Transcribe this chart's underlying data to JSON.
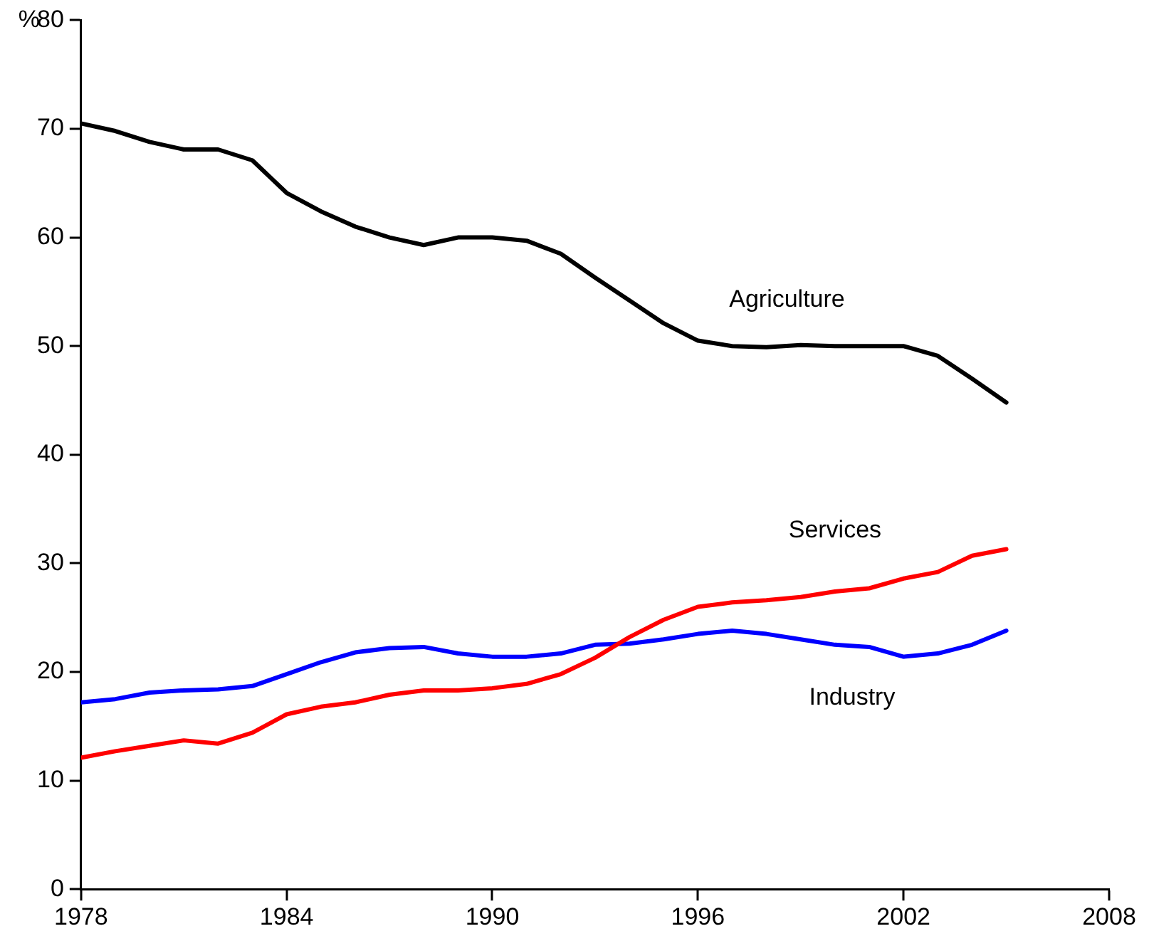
{
  "chart_data": {
    "type": "line",
    "ylabel": "%",
    "x": [
      1978,
      1979,
      1980,
      1981,
      1982,
      1983,
      1984,
      1985,
      1986,
      1987,
      1988,
      1989,
      1990,
      1991,
      1992,
      1993,
      1994,
      1995,
      1996,
      1997,
      1998,
      1999,
      2000,
      2001,
      2002,
      2003,
      2004,
      2005
    ],
    "series": [
      {
        "name": "Agriculture",
        "color": "#000000",
        "values": [
          70.5,
          69.8,
          68.8,
          68.1,
          68.1,
          67.1,
          64.1,
          62.4,
          61.0,
          60.0,
          59.3,
          60.0,
          60.0,
          59.7,
          58.5,
          56.3,
          54.2,
          52.1,
          50.5,
          50.0,
          49.9,
          50.1,
          50.0,
          50.0,
          50.0,
          49.1,
          47.0,
          44.8
        ]
      },
      {
        "name": "Services",
        "color": "#ff0000",
        "values": [
          12.1,
          12.7,
          13.2,
          13.7,
          13.4,
          14.4,
          16.1,
          16.8,
          17.2,
          17.9,
          18.3,
          18.3,
          18.5,
          18.9,
          19.8,
          21.3,
          23.2,
          24.8,
          26.0,
          26.4,
          26.6,
          26.9,
          27.4,
          27.7,
          28.6,
          29.2,
          30.7,
          31.3
        ]
      },
      {
        "name": "Industry",
        "color": "#0000ff",
        "values": [
          17.2,
          17.5,
          18.1,
          18.3,
          18.4,
          18.7,
          19.8,
          20.9,
          21.8,
          22.2,
          22.3,
          21.7,
          21.4,
          21.4,
          21.7,
          22.5,
          22.6,
          23.0,
          23.5,
          23.8,
          23.5,
          23.0,
          22.5,
          22.3,
          21.4,
          21.7,
          22.5,
          23.8
        ]
      }
    ],
    "xlim": [
      1978,
      2008
    ],
    "xticks": [
      1978,
      1984,
      1990,
      1996,
      2002,
      2008
    ],
    "ylim": [
      0,
      80
    ],
    "yticks": [
      0,
      10,
      20,
      30,
      40,
      50,
      60,
      70,
      80
    ],
    "grid": false,
    "legend": false,
    "marker": "none",
    "line_style": "solid"
  }
}
